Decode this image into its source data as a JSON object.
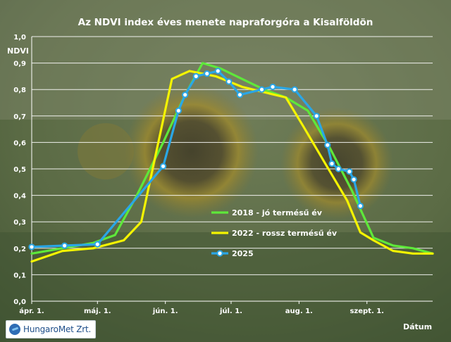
{
  "chart_data": {
    "type": "line",
    "title": "Az NDVI index éves menete napraforgóra a Kisalföldön",
    "ylabel": "NDVI",
    "xlabel": "Dátum",
    "ylim": [
      0,
      1.0
    ],
    "yticks": [
      "0,0",
      "0,1",
      "0,2",
      "0,3",
      "0,4",
      "0,5",
      "0,6",
      "0,7",
      "0,8",
      "0,9",
      "1,0"
    ],
    "xticks": [
      {
        "label": "ápr. 1.",
        "day": 0
      },
      {
        "label": "máj. 1.",
        "day": 30
      },
      {
        "label": "jún. 1.",
        "day": 61
      },
      {
        "label": "júl. 1.",
        "day": 91
      },
      {
        "label": "aug. 1.",
        "day": 122
      },
      {
        "label": "szept. 1.",
        "day": 153
      }
    ],
    "xlim_days": [
      0,
      183
    ],
    "grid": true,
    "legend_position": "center-right",
    "series": [
      {
        "name": "2018 - jó termésű év",
        "color": "#5ee83a",
        "markers": false,
        "points": [
          [
            0,
            0.18
          ],
          [
            14,
            0.2
          ],
          [
            28,
            0.22
          ],
          [
            38,
            0.25
          ],
          [
            48,
            0.4
          ],
          [
            60,
            0.6
          ],
          [
            70,
            0.78
          ],
          [
            78,
            0.9
          ],
          [
            86,
            0.88
          ],
          [
            96,
            0.84
          ],
          [
            106,
            0.8
          ],
          [
            116,
            0.77
          ],
          [
            126,
            0.72
          ],
          [
            136,
            0.58
          ],
          [
            146,
            0.42
          ],
          [
            156,
            0.24
          ],
          [
            165,
            0.21
          ],
          [
            174,
            0.2
          ],
          [
            183,
            0.18
          ]
        ]
      },
      {
        "name": "2022 - rossz termésű év",
        "color": "#f4f400",
        "markers": false,
        "points": [
          [
            0,
            0.15
          ],
          [
            14,
            0.19
          ],
          [
            28,
            0.2
          ],
          [
            42,
            0.23
          ],
          [
            50,
            0.3
          ],
          [
            64,
            0.84
          ],
          [
            72,
            0.87
          ],
          [
            84,
            0.85
          ],
          [
            96,
            0.81
          ],
          [
            106,
            0.79
          ],
          [
            116,
            0.77
          ],
          [
            124,
            0.66
          ],
          [
            134,
            0.52
          ],
          [
            144,
            0.38
          ],
          [
            150,
            0.26
          ],
          [
            156,
            0.23
          ],
          [
            165,
            0.19
          ],
          [
            174,
            0.18
          ],
          [
            183,
            0.18
          ]
        ]
      },
      {
        "name": "2025",
        "color": "#2aa6e6",
        "markers": true,
        "points": [
          [
            0,
            0.205
          ],
          [
            15,
            0.21
          ],
          [
            30,
            0.215
          ],
          [
            60,
            0.51
          ],
          [
            67,
            0.72
          ],
          [
            70,
            0.78
          ],
          [
            75,
            0.85
          ],
          [
            80,
            0.86
          ],
          [
            85,
            0.87
          ],
          [
            90,
            0.83
          ],
          [
            95,
            0.78
          ],
          [
            105,
            0.8
          ],
          [
            110,
            0.81
          ],
          [
            120,
            0.8
          ],
          [
            130,
            0.7
          ],
          [
            135,
            0.59
          ],
          [
            137,
            0.52
          ],
          [
            140,
            0.5
          ],
          [
            145,
            0.49
          ],
          [
            147,
            0.46
          ],
          [
            150,
            0.36
          ]
        ]
      }
    ]
  },
  "branding": {
    "logo_text": "HungaroMet Zrt."
  }
}
